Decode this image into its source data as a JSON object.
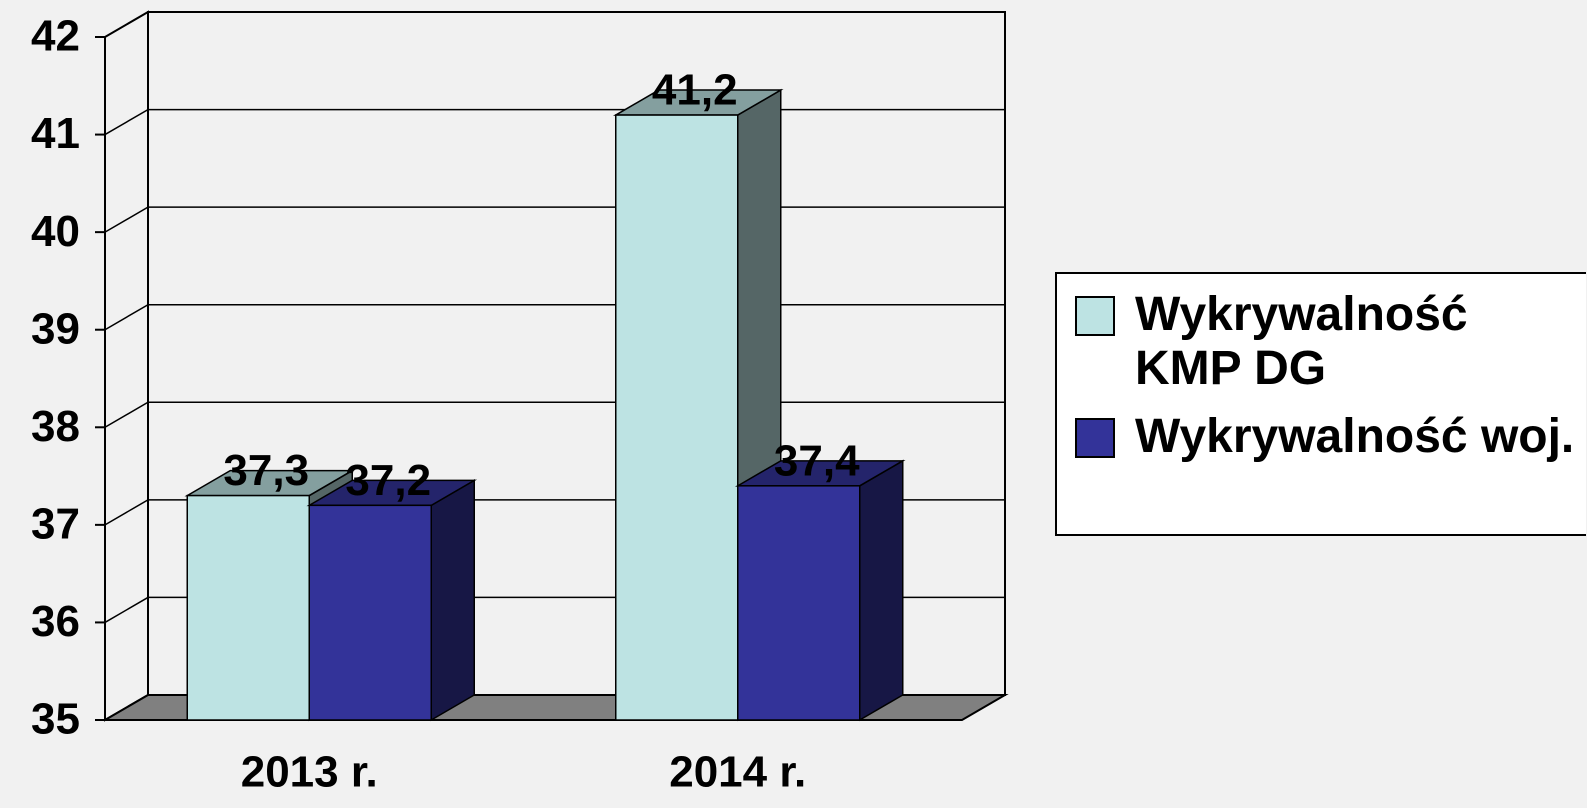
{
  "chart_data": {
    "type": "bar3d",
    "categories": [
      "2013 r.",
      "2014 r."
    ],
    "series": [
      {
        "name": "Wykrywalność KMP DG",
        "color": "#bde3e3",
        "values": [
          37.3,
          41.2
        ],
        "value_labels": [
          "37,3",
          "41,2"
        ]
      },
      {
        "name": "Wykrywalność woj.",
        "color": "#333399",
        "values": [
          37.2,
          37.4
        ],
        "value_labels": [
          "37,2",
          "37,4"
        ]
      }
    ],
    "ylim": [
      35,
      42
    ],
    "yticks": [
      35,
      36,
      37,
      38,
      39,
      40,
      41,
      42
    ],
    "grid": true,
    "legend": "right"
  }
}
